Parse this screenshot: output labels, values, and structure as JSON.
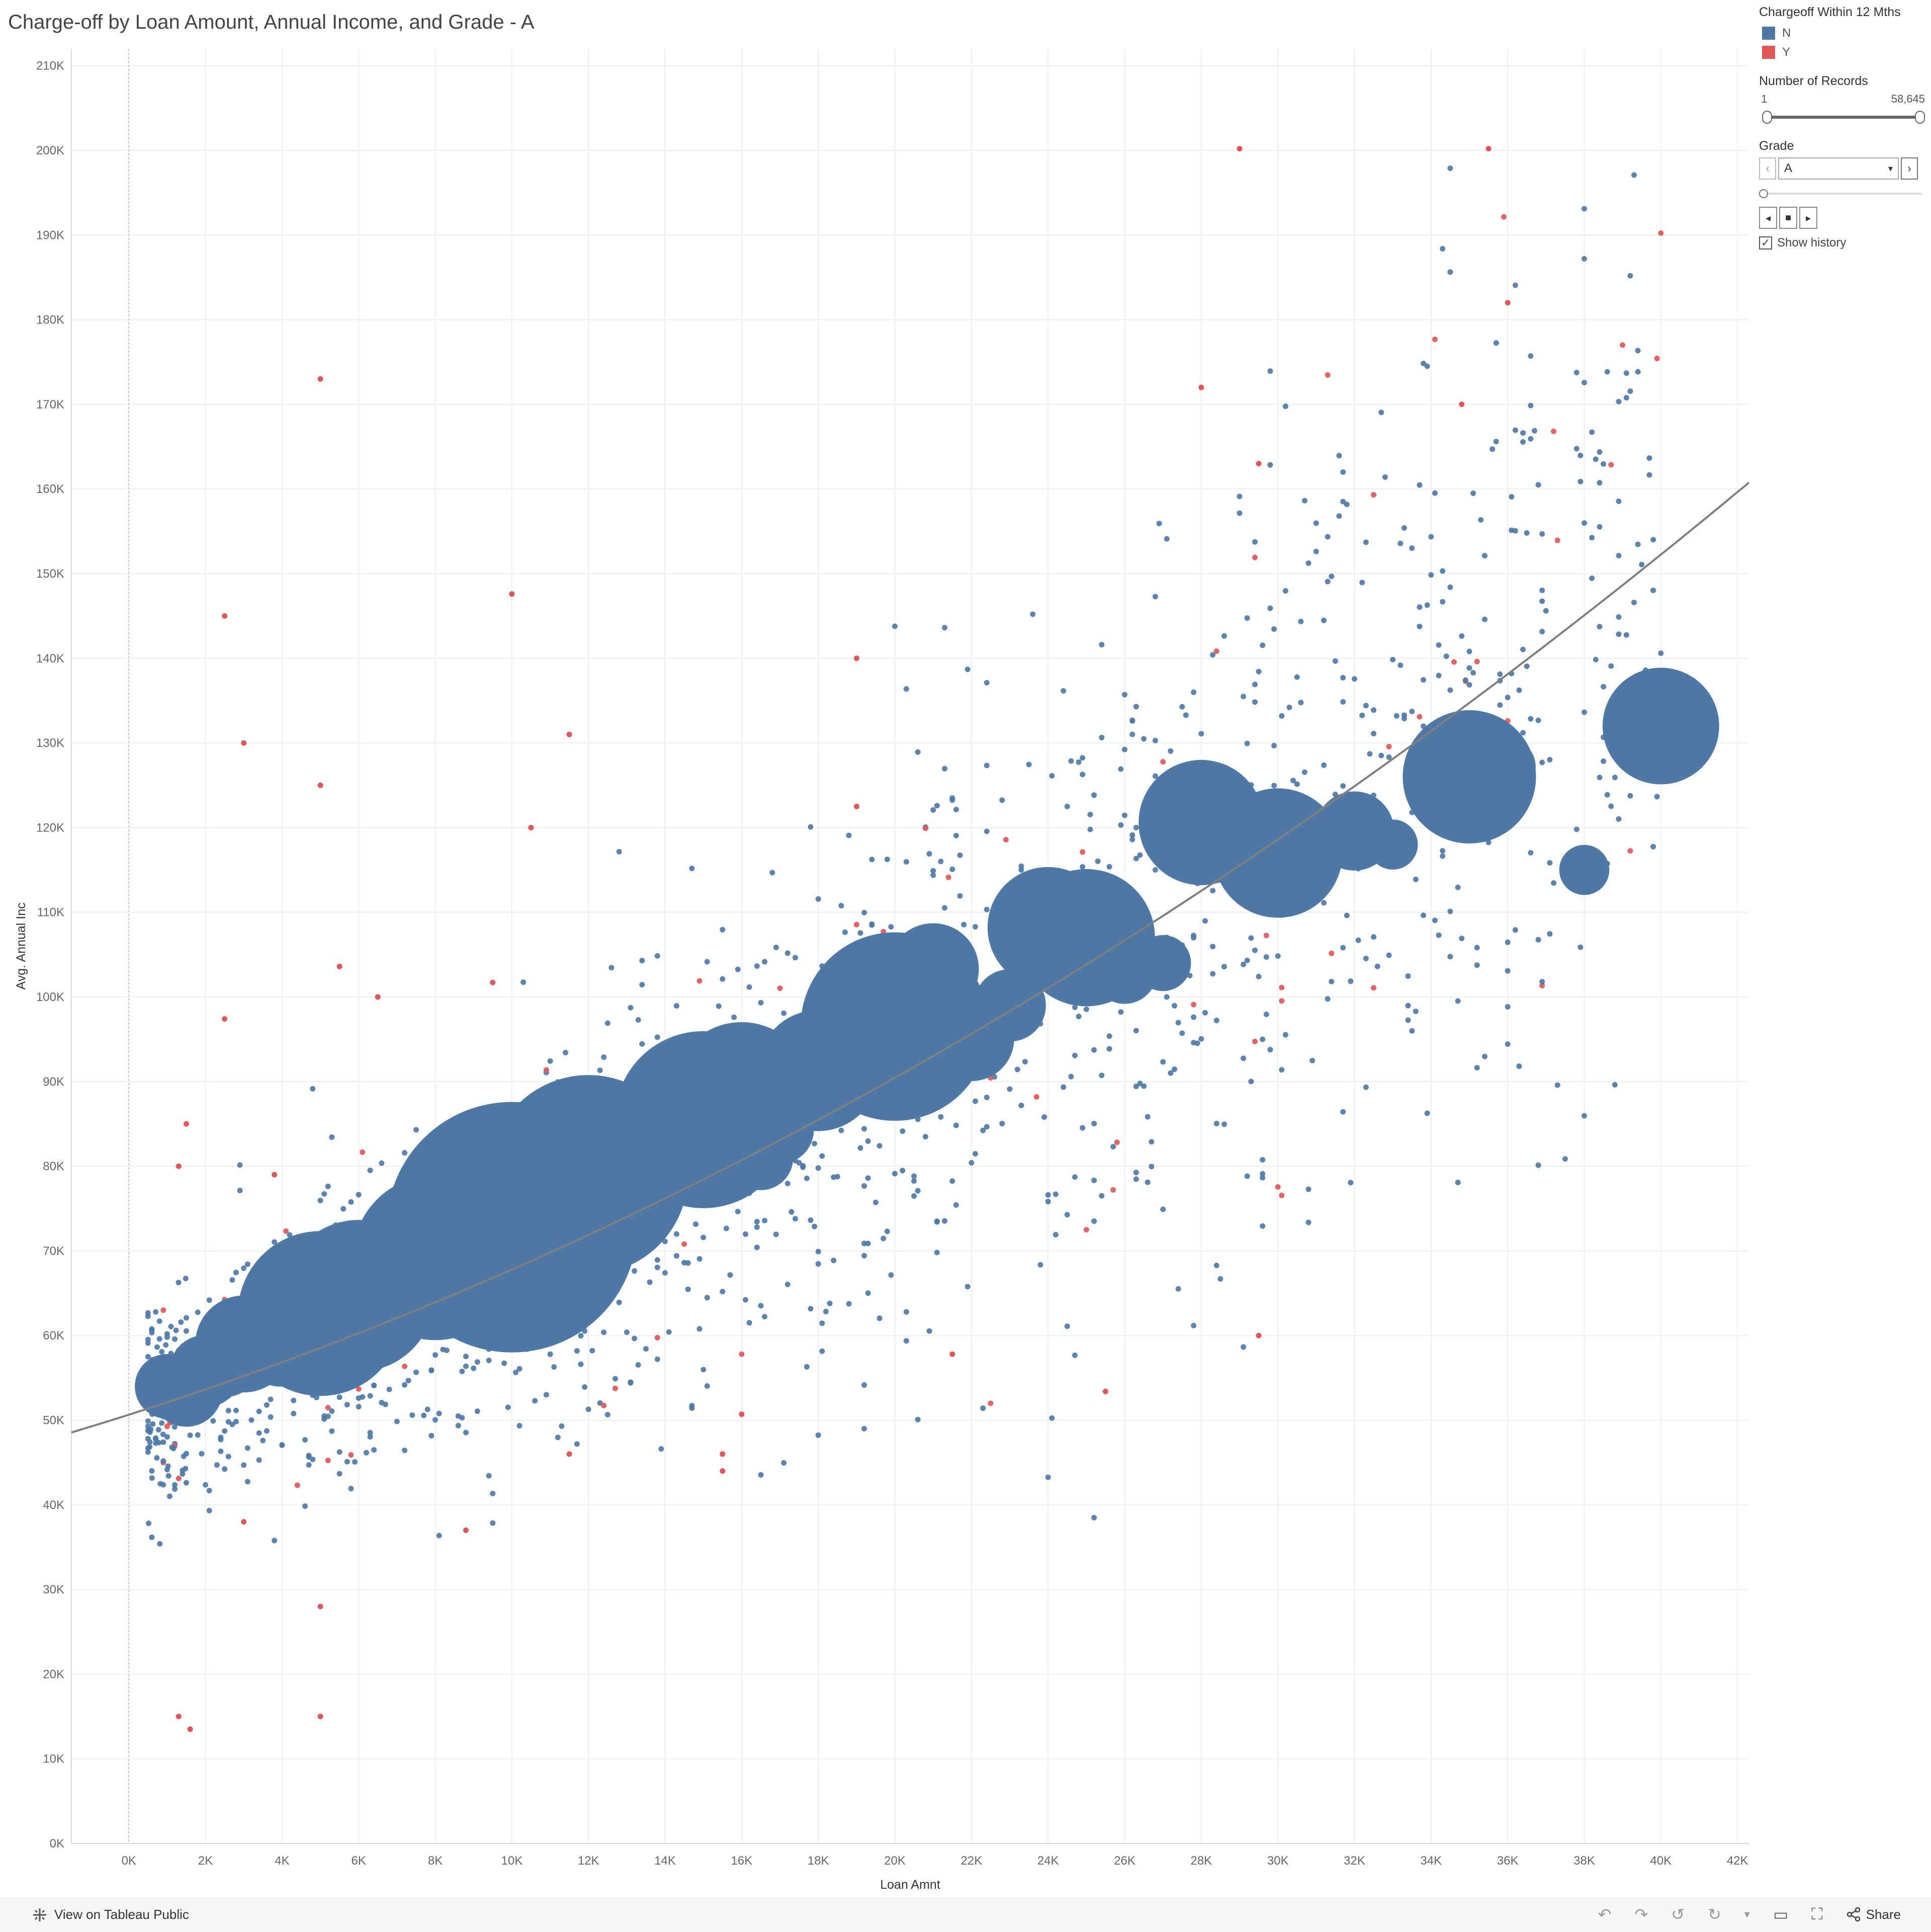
{
  "page": {
    "title": "Charge-off by Loan Amount, Annual Income, and Grade - A"
  },
  "legend": {
    "color_title": "Chargeoff Within 12 Mths",
    "items": [
      {
        "label": "N",
        "color": "#4e79a7"
      },
      {
        "label": "Y",
        "color": "#e15759"
      }
    ],
    "size_title": "Number of Records",
    "size_min": "1",
    "size_max": "58,645"
  },
  "grade_filter": {
    "title": "Grade",
    "value": "A",
    "show_history": "Show history"
  },
  "footer": {
    "brand": "View on Tableau Public",
    "share": "Share"
  },
  "icons": [
    "tableau-logo-icon",
    "undo-icon",
    "redo-icon",
    "revert-icon",
    "refresh-icon",
    "dropdown-icon",
    "presentation-icon",
    "fullscreen-icon",
    "share-icon",
    "prev-icon",
    "next-icon",
    "play-icon",
    "stop-icon",
    "chevron-down-icon",
    "checkbox-icon"
  ],
  "chart_data": {
    "type": "scatter",
    "xlabel": "Loan Amnt",
    "ylabel": "Avg. Annual Inc",
    "xlim": [
      -1500,
      42300
    ],
    "ylim": [
      0,
      212000
    ],
    "x_ticks": [
      "0K",
      "2K",
      "4K",
      "6K",
      "8K",
      "10K",
      "12K",
      "14K",
      "16K",
      "18K",
      "20K",
      "22K",
      "24K",
      "26K",
      "28K",
      "30K",
      "32K",
      "34K",
      "36K",
      "38K",
      "40K",
      "42K"
    ],
    "y_ticks": [
      "0K",
      "10K",
      "20K",
      "30K",
      "40K",
      "50K",
      "60K",
      "70K",
      "80K",
      "90K",
      "100K",
      "110K",
      "120K",
      "130K",
      "140K",
      "150K",
      "160K",
      "170K",
      "180K",
      "190K",
      "200K",
      "210K"
    ],
    "grid": true,
    "legend_position": "top-right",
    "colors": {
      "N": "#4e79a7",
      "Y": "#e15759",
      "trend": "#7f7f7f"
    },
    "trend_line": {
      "type": "polynomial",
      "coefficients": [
        50650,
        1.44,
        2.75e-05
      ]
    },
    "series": [
      {
        "name": "N",
        "points": [
          [
            10000,
            72800,
            3000
          ],
          [
            12000,
            79000,
            1900
          ],
          [
            20000,
            96500,
            1700
          ],
          [
            15000,
            85500,
            1500
          ],
          [
            8000,
            69200,
            1300
          ],
          [
            5000,
            62600,
            1300
          ],
          [
            6000,
            64700,
            1100
          ],
          [
            16000,
            88700,
            950
          ],
          [
            25000,
            107000,
            900
          ],
          [
            35000,
            126000,
            850
          ],
          [
            30000,
            117000,
            800
          ],
          [
            28000,
            120600,
            750
          ],
          [
            24000,
            108200,
            700
          ],
          [
            18000,
            91300,
            700
          ],
          [
            40000,
            132000,
            650
          ],
          [
            9000,
            70300,
            600
          ],
          [
            11000,
            71500,
            500
          ],
          [
            14000,
            83000,
            550
          ],
          [
            7000,
            65800,
            500
          ],
          [
            4000,
            60000,
            500
          ],
          [
            3000,
            59000,
            450
          ],
          [
            12500,
            77200,
            400
          ],
          [
            13000,
            77300,
            400
          ],
          [
            21000,
            103300,
            400
          ],
          [
            22000,
            95100,
            350
          ],
          [
            32000,
            119600,
            300
          ],
          [
            8500,
            68200,
            350
          ],
          [
            7500,
            69000,
            300
          ],
          [
            6500,
            63800,
            300
          ],
          [
            5500,
            61200,
            300
          ],
          [
            4500,
            59300,
            250
          ],
          [
            3500,
            58500,
            250
          ],
          [
            2500,
            57000,
            250
          ],
          [
            2000,
            55800,
            250
          ],
          [
            1500,
            53500,
            250
          ],
          [
            1000,
            54000,
            200
          ],
          [
            9500,
            73300,
            280
          ],
          [
            10500,
            75000,
            250
          ],
          [
            13500,
            78800,
            250
          ],
          [
            14500,
            84000,
            250
          ],
          [
            16500,
            81000,
            200
          ],
          [
            17000,
            84300,
            220
          ],
          [
            19000,
            93900,
            200
          ],
          [
            23000,
            99000,
            250
          ],
          [
            26000,
            103000,
            200
          ],
          [
            27000,
            104000,
            150
          ],
          [
            24500,
            110500,
            150
          ],
          [
            36000,
            127200,
            150
          ],
          [
            38000,
            115000,
            120
          ],
          [
            33000,
            118000,
            120
          ]
        ]
      },
      {
        "name": "Y",
        "points": [
          [
            29000,
            200200,
            1
          ],
          [
            35500,
            200200,
            1
          ],
          [
            5000,
            173000,
            1
          ],
          [
            28000,
            172000,
            1
          ],
          [
            10000,
            147600,
            1
          ],
          [
            2500,
            145000,
            1
          ],
          [
            34800,
            170000,
            1
          ],
          [
            11500,
            131000,
            1
          ],
          [
            3000,
            130000,
            1
          ],
          [
            5000,
            125000,
            1
          ],
          [
            19000,
            140000,
            1
          ],
          [
            36000,
            182000,
            1
          ],
          [
            29500,
            163000,
            1
          ],
          [
            10500,
            120000,
            1
          ],
          [
            19000,
            122500,
            1
          ],
          [
            2500,
            97400,
            1
          ],
          [
            5500,
            103600,
            1
          ],
          [
            6500,
            100000,
            1
          ],
          [
            9500,
            101700,
            1
          ],
          [
            1500,
            85000,
            1
          ],
          [
            1300,
            80000,
            1
          ],
          [
            3800,
            79000,
            1
          ],
          [
            3000,
            38000,
            1
          ],
          [
            5000,
            28000,
            1
          ],
          [
            5000,
            15000,
            1
          ],
          [
            1300,
            15000,
            1
          ],
          [
            1600,
            13500,
            1
          ],
          [
            8800,
            37000,
            1
          ],
          [
            11500,
            46000,
            1
          ],
          [
            15500,
            46000,
            1
          ],
          [
            15500,
            44000,
            1
          ],
          [
            25500,
            53400,
            1
          ],
          [
            29500,
            60000,
            1
          ],
          [
            16000,
            50700,
            1
          ],
          [
            21500,
            57800,
            1
          ]
        ]
      }
    ]
  }
}
